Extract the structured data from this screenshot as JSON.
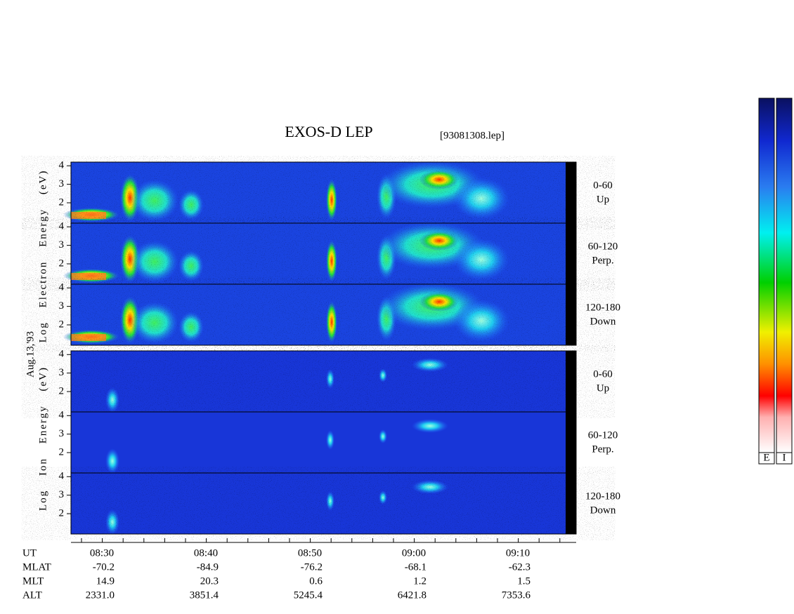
{
  "chart_data": {
    "type": "spectrogram",
    "title": "EXOS-D LEP",
    "file": "[93081308.lep]",
    "date": "Aug.13,'93",
    "groups": [
      {
        "label": "Log Electron Energy (eV)",
        "panels": [
          {
            "angle": "0-60",
            "direction": "Up"
          },
          {
            "angle": "60-120",
            "direction": "Perp."
          },
          {
            "angle": "120-180",
            "direction": "Down"
          }
        ]
      },
      {
        "label": "Log Ion Energy (eV)",
        "panels": [
          {
            "angle": "0-60",
            "direction": "Up"
          },
          {
            "angle": "60-120",
            "direction": "Perp."
          },
          {
            "angle": "120-180",
            "direction": "Down"
          }
        ]
      }
    ],
    "ylim": [
      0.9,
      4.2
    ],
    "yticks": [
      2,
      3,
      4
    ],
    "x_label": "UT",
    "xticks": [
      "08:30",
      "08:40",
      "08:50",
      "09:00",
      "09:10"
    ],
    "ephemeris": [
      {
        "name": "MLAT",
        "values": [
          "-70.2",
          "-84.9",
          "-76.2",
          "-68.1",
          "-62.3"
        ]
      },
      {
        "name": "MLT",
        "values": [
          "14.9",
          "20.3",
          "0.6",
          "1.2",
          "1.5"
        ]
      },
      {
        "name": "ALT",
        "values": [
          "2331.0",
          "3851.4",
          "5245.4",
          "6421.8",
          "7353.6"
        ]
      }
    ],
    "colorbars": [
      "E",
      "I"
    ]
  }
}
